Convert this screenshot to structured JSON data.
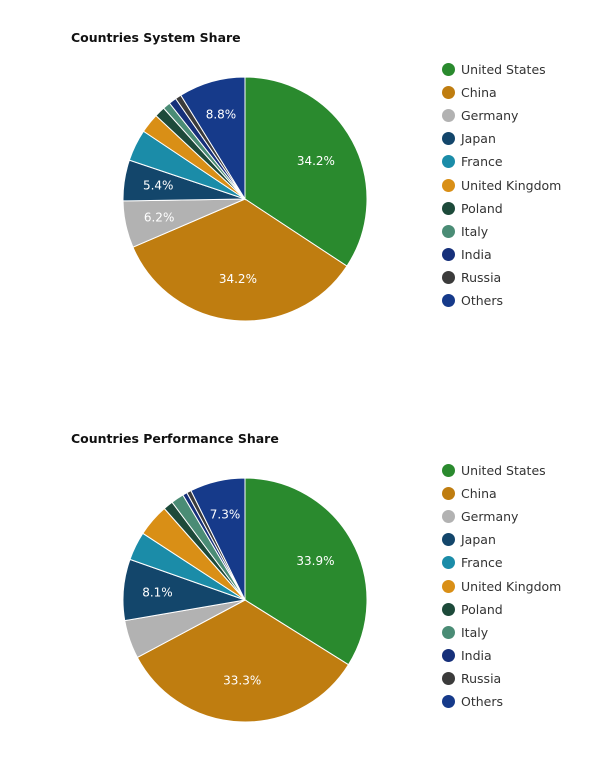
{
  "chart_data": [
    {
      "type": "pie",
      "title": "Countries System Share",
      "legend_position": "right",
      "categories": [
        "United States",
        "China",
        "Germany",
        "Japan",
        "France",
        "United Kingdom",
        "Poland",
        "Italy",
        "India",
        "Russia",
        "Others"
      ],
      "values": [
        34.2,
        34.2,
        6.2,
        5.4,
        4.2,
        2.6,
        1.4,
        1.0,
        1.0,
        0.8,
        8.8
      ],
      "data_labels": [
        "34.2%",
        "34.2%",
        "6.2%",
        "5.4%",
        "",
        "",
        "",
        "",
        "",
        "",
        "8.8%"
      ],
      "colors": [
        "#2a8a2e",
        "#bf7d10",
        "#b2b2b2",
        "#13466b",
        "#1b8ca8",
        "#d98f16",
        "#1d4a3a",
        "#4a8c75",
        "#16307a",
        "#3b3b3b",
        "#163a8a"
      ]
    },
    {
      "type": "pie",
      "title": "Countries Performance Share",
      "legend_position": "right",
      "categories": [
        "United States",
        "China",
        "Germany",
        "Japan",
        "France",
        "United Kingdom",
        "Poland",
        "Italy",
        "India",
        "Russia",
        "Others"
      ],
      "values": [
        33.9,
        33.3,
        5.1,
        8.1,
        3.8,
        4.3,
        1.3,
        1.7,
        0.6,
        0.6,
        7.3
      ],
      "data_labels": [
        "33.9%",
        "33.3%",
        "",
        "8.1%",
        "",
        "",
        "",
        "",
        "",
        "",
        "7.3%"
      ],
      "colors": [
        "#2a8a2e",
        "#bf7d10",
        "#b2b2b2",
        "#13466b",
        "#1b8ca8",
        "#d98f16",
        "#1d4a3a",
        "#4a8c75",
        "#16307a",
        "#3b3b3b",
        "#163a8a"
      ]
    }
  ]
}
